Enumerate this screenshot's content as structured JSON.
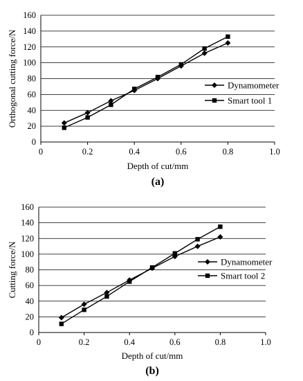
{
  "chart_data": [
    {
      "type": "line",
      "panel_label": "(a)",
      "xlabel": "Depth of cut/mm",
      "ylabel": "Orthogonal cutting force/N",
      "xlim": [
        0,
        1.0
      ],
      "ylim": [
        0,
        160
      ],
      "x_ticks": [
        "0",
        "0.2",
        "0.4",
        "0.6",
        "0.8",
        "1.0"
      ],
      "y_ticks": [
        "0",
        "20",
        "40",
        "60",
        "80",
        "100",
        "120",
        "140",
        "160"
      ],
      "grid": "horizontal",
      "legend_position": "right",
      "series": [
        {
          "name": "Dynamometer",
          "marker": "diamond",
          "x": [
            0.1,
            0.2,
            0.3,
            0.4,
            0.5,
            0.6,
            0.7,
            0.8
          ],
          "y": [
            24,
            37,
            52,
            65,
            80,
            96,
            112,
            125
          ]
        },
        {
          "name": "Smart tool 1",
          "marker": "square",
          "x": [
            0.1,
            0.2,
            0.3,
            0.4,
            0.5,
            0.6,
            0.7,
            0.8
          ],
          "y": [
            18,
            31,
            47,
            67,
            82,
            98,
            118,
            133
          ]
        }
      ]
    },
    {
      "type": "line",
      "panel_label": "(b)",
      "xlabel": "Depth of cut/mm",
      "ylabel": "Cutting force/N",
      "xlim": [
        0,
        1.0
      ],
      "ylim": [
        0,
        160
      ],
      "x_ticks": [
        "0",
        "0.2",
        "0.4",
        "0.6",
        "0.8",
        "1.0"
      ],
      "y_ticks": [
        "0",
        "20",
        "40",
        "60",
        "80",
        "100",
        "120",
        "140",
        "160"
      ],
      "grid": "horizontal",
      "legend_position": "right",
      "series": [
        {
          "name": "Dynamometer",
          "marker": "diamond",
          "x": [
            0.1,
            0.2,
            0.3,
            0.4,
            0.5,
            0.6,
            0.7,
            0.8
          ],
          "y": [
            19,
            36,
            51,
            67,
            82,
            97,
            110,
            122
          ]
        },
        {
          "name": "Smart tool 2",
          "marker": "square",
          "x": [
            0.1,
            0.2,
            0.3,
            0.4,
            0.5,
            0.6,
            0.7,
            0.8
          ],
          "y": [
            11,
            29,
            46,
            65,
            83,
            101,
            119,
            135
          ]
        }
      ]
    }
  ]
}
